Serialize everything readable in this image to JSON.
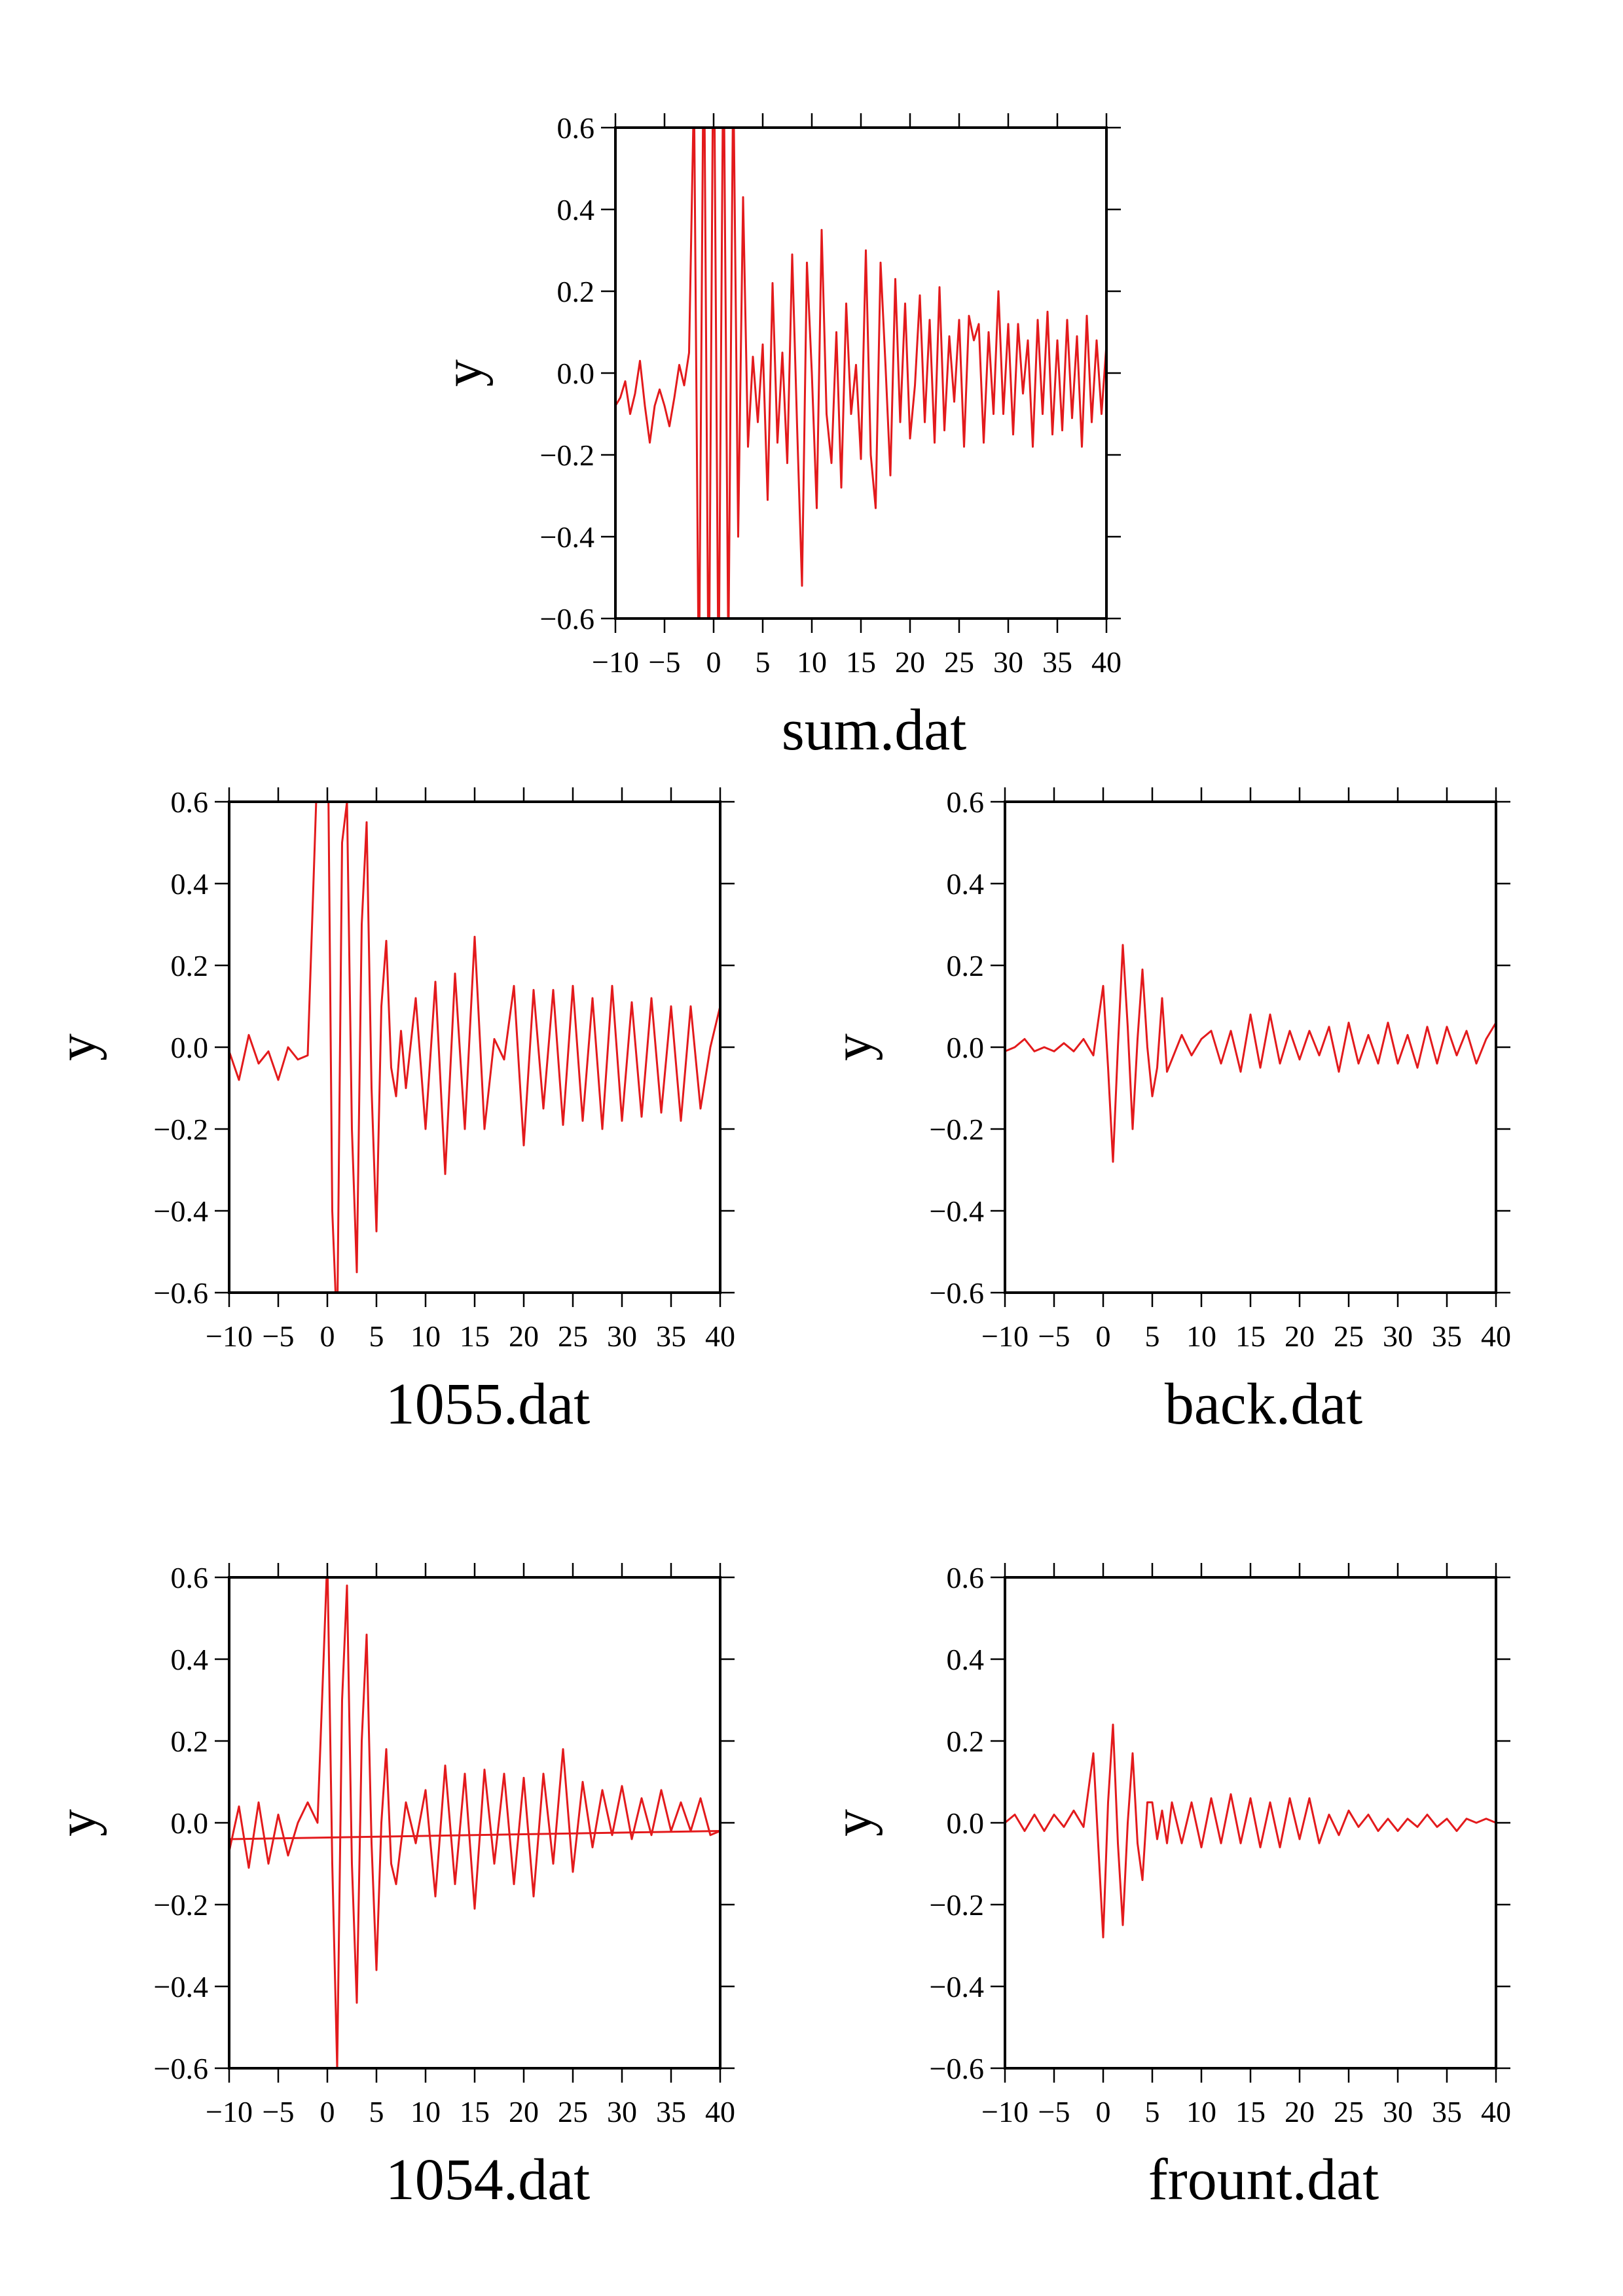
{
  "colors": {
    "series": "#e31a1c",
    "axis": "#000000",
    "background": "#ffffff"
  },
  "chart_data": [
    {
      "type": "line",
      "title": "sum.dat",
      "xlabel": "sum.dat",
      "ylabel": "y",
      "xlim": [
        -10,
        40
      ],
      "ylim": [
        -0.6,
        0.6
      ],
      "xticks": [
        -10,
        -5,
        0,
        5,
        10,
        15,
        20,
        25,
        30,
        35,
        40
      ],
      "xtick_labels": [
        "−10",
        "−5",
        "0",
        "5",
        "10",
        "15",
        "20",
        "25",
        "30",
        "35",
        "40"
      ],
      "yticks": [
        -0.6,
        -0.4,
        -0.2,
        0.0,
        0.2,
        0.4,
        0.6
      ],
      "ytick_labels": [
        "−0.6",
        "−0.4",
        "−0.2",
        "0.0",
        "0.2",
        "0.4",
        "0.6"
      ],
      "grid": false,
      "series": [
        {
          "x": [
            -10,
            -9.5,
            -9,
            -8.5,
            -8,
            -7.5,
            -7,
            -6.5,
            -6,
            -5.5,
            -5,
            -4.5,
            -4,
            -3.5,
            -3,
            -2.5,
            -2,
            -1.5,
            -1,
            -0.5,
            0,
            0.5,
            1,
            1.5,
            2,
            2.5,
            3,
            3.5,
            4,
            4.5,
            5,
            5.5,
            6,
            6.5,
            7,
            7.5,
            8,
            8.5,
            9,
            9.5,
            10,
            10.5,
            11,
            11.5,
            12,
            12.5,
            13,
            13.5,
            14,
            14.5,
            15,
            15.5,
            16,
            16.5,
            17,
            17.5,
            18,
            18.5,
            19,
            19.5,
            20,
            20.5,
            21,
            21.5,
            22,
            22.5,
            23,
            23.5,
            24,
            24.5,
            25,
            25.5,
            26,
            26.5,
            27,
            27.5,
            28,
            28.5,
            29,
            29.5,
            30,
            30.5,
            31,
            31.5,
            32,
            32.5,
            33,
            33.5,
            34,
            34.5,
            35,
            35.5,
            36,
            36.5,
            37,
            37.5,
            38,
            38.5,
            39,
            39.5,
            40
          ],
          "y": [
            -0.08,
            -0.06,
            -0.02,
            -0.1,
            -0.05,
            0.03,
            -0.08,
            -0.17,
            -0.08,
            -0.04,
            -0.08,
            -0.13,
            -0.06,
            0.02,
            -0.03,
            0.05,
            0.7,
            -0.8,
            0.9,
            -0.85,
            0.95,
            -0.8,
            0.85,
            -0.7,
            0.75,
            -0.4,
            0.43,
            -0.18,
            0.04,
            -0.12,
            0.07,
            -0.31,
            0.22,
            -0.17,
            0.05,
            -0.22,
            0.29,
            -0.13,
            -0.52,
            0.27,
            0.0,
            -0.33,
            0.35,
            -0.1,
            -0.22,
            0.1,
            -0.28,
            0.17,
            -0.1,
            0.02,
            -0.21,
            0.3,
            -0.2,
            -0.33,
            0.27,
            0.02,
            -0.25,
            0.23,
            -0.12,
            0.17,
            -0.16,
            -0.03,
            0.19,
            -0.12,
            0.13,
            -0.17,
            0.21,
            -0.14,
            0.09,
            -0.07,
            0.13,
            -0.18,
            0.14,
            0.08,
            0.12,
            -0.17,
            0.1,
            -0.1,
            0.2,
            -0.1,
            0.12,
            -0.15,
            0.12,
            -0.05,
            0.08,
            -0.18,
            0.13,
            -0.1,
            0.15,
            -0.15,
            0.08,
            -0.14,
            0.13,
            -0.11,
            0.09,
            -0.18,
            0.14,
            -0.12,
            0.08,
            -0.1,
            0.07
          ]
        }
      ]
    },
    {
      "type": "line",
      "title": "1055.dat",
      "xlabel": "1055.dat",
      "ylabel": "y",
      "xlim": [
        -10,
        40
      ],
      "ylim": [
        -0.6,
        0.6
      ],
      "xticks": [
        -10,
        -5,
        0,
        5,
        10,
        15,
        20,
        25,
        30,
        35,
        40
      ],
      "xtick_labels": [
        "−10",
        "−5",
        "0",
        "5",
        "10",
        "15",
        "20",
        "25",
        "30",
        "35",
        "40"
      ],
      "yticks": [
        -0.6,
        -0.4,
        -0.2,
        0.0,
        0.2,
        0.4,
        0.6
      ],
      "ytick_labels": [
        "−0.6",
        "−0.4",
        "−0.2",
        "0.0",
        "0.2",
        "0.4",
        "0.6"
      ],
      "grid": false,
      "series": [
        {
          "x": [
            -10,
            -9,
            -8,
            -7,
            -6,
            -5,
            -4,
            -3,
            -2,
            -1,
            0,
            0.5,
            1,
            1.5,
            2,
            2.5,
            3,
            3.5,
            4,
            4.5,
            5,
            5.5,
            6,
            6.5,
            7,
            7.5,
            8,
            9,
            10,
            11,
            12,
            13,
            14,
            15,
            16,
            17,
            18,
            19,
            20,
            21,
            22,
            23,
            24,
            25,
            26,
            27,
            28,
            29,
            30,
            31,
            32,
            33,
            34,
            35,
            36,
            37,
            38,
            39,
            40
          ],
          "y": [
            -0.01,
            -0.08,
            0.03,
            -0.04,
            -0.01,
            -0.08,
            0.0,
            -0.03,
            -0.02,
            0.7,
            0.9,
            -0.4,
            -0.7,
            0.5,
            0.6,
            -0.2,
            -0.55,
            0.3,
            0.55,
            -0.1,
            -0.45,
            0.1,
            0.26,
            -0.05,
            -0.12,
            0.04,
            -0.1,
            0.12,
            -0.2,
            0.16,
            -0.31,
            0.18,
            -0.2,
            0.27,
            -0.2,
            0.02,
            -0.03,
            0.15,
            -0.24,
            0.14,
            -0.15,
            0.14,
            -0.19,
            0.15,
            -0.18,
            0.12,
            -0.2,
            0.15,
            -0.18,
            0.11,
            -0.17,
            0.12,
            -0.16,
            0.1,
            -0.18,
            0.1,
            -0.15,
            0.0,
            0.1
          ]
        }
      ]
    },
    {
      "type": "line",
      "title": "back.dat",
      "xlabel": "back.dat",
      "ylabel": "y",
      "xlim": [
        -10,
        40
      ],
      "ylim": [
        -0.6,
        0.6
      ],
      "xticks": [
        -10,
        -5,
        0,
        5,
        10,
        15,
        20,
        25,
        30,
        35,
        40
      ],
      "xtick_labels": [
        "−10",
        "−5",
        "0",
        "5",
        "10",
        "15",
        "20",
        "25",
        "30",
        "35",
        "40"
      ],
      "yticks": [
        -0.6,
        -0.4,
        -0.2,
        0.0,
        0.2,
        0.4,
        0.6
      ],
      "ytick_labels": [
        "−0.6",
        "−0.4",
        "−0.2",
        "0.0",
        "0.2",
        "0.4",
        "0.6"
      ],
      "grid": false,
      "series": [
        {
          "x": [
            -10,
            -9,
            -8,
            -7,
            -6,
            -5,
            -4,
            -3,
            -2,
            -1,
            0,
            0.5,
            1,
            1.5,
            2,
            2.5,
            3,
            3.5,
            4,
            4.5,
            5,
            5.5,
            6,
            6.5,
            7,
            8,
            9,
            10,
            11,
            12,
            13,
            14,
            15,
            16,
            17,
            18,
            19,
            20,
            21,
            22,
            23,
            24,
            25,
            26,
            27,
            28,
            29,
            30,
            31,
            32,
            33,
            34,
            35,
            36,
            37,
            38,
            39,
            40
          ],
          "y": [
            -0.01,
            0.0,
            0.02,
            -0.01,
            0.0,
            -0.01,
            0.01,
            -0.01,
            0.02,
            -0.02,
            0.15,
            -0.05,
            -0.28,
            0.0,
            0.25,
            0.05,
            -0.2,
            0.02,
            0.19,
            0.0,
            -0.12,
            -0.05,
            0.12,
            -0.06,
            -0.03,
            0.03,
            -0.02,
            0.02,
            0.04,
            -0.04,
            0.04,
            -0.06,
            0.08,
            -0.05,
            0.08,
            -0.04,
            0.04,
            -0.03,
            0.04,
            -0.02,
            0.05,
            -0.06,
            0.06,
            -0.04,
            0.03,
            -0.04,
            0.06,
            -0.04,
            0.03,
            -0.05,
            0.05,
            -0.04,
            0.05,
            -0.02,
            0.04,
            -0.04,
            0.02,
            0.06
          ]
        }
      ]
    },
    {
      "type": "line",
      "title": "1054.dat",
      "xlabel": "1054.dat",
      "ylabel": "y",
      "xlim": [
        -10,
        40
      ],
      "ylim": [
        -0.6,
        0.6
      ],
      "xticks": [
        -10,
        -5,
        0,
        5,
        10,
        15,
        20,
        25,
        30,
        35,
        40
      ],
      "xtick_labels": [
        "−10",
        "−5",
        "0",
        "5",
        "10",
        "15",
        "20",
        "25",
        "30",
        "35",
        "40"
      ],
      "yticks": [
        -0.6,
        -0.4,
        -0.2,
        0.0,
        0.2,
        0.4,
        0.6
      ],
      "ytick_labels": [
        "−0.6",
        "−0.4",
        "−0.2",
        "0.0",
        "0.2",
        "0.4",
        "0.6"
      ],
      "grid": false,
      "series": [
        {
          "x": [
            -10,
            -9,
            -8,
            -7,
            -6,
            -5,
            -4,
            -3,
            -2,
            -1,
            0,
            0.5,
            1,
            1.5,
            2,
            2.5,
            3,
            3.5,
            4,
            4.5,
            5,
            5.5,
            6,
            6.5,
            7,
            8,
            9,
            10,
            11,
            12,
            13,
            14,
            15,
            16,
            17,
            18,
            19,
            20,
            21,
            22,
            23,
            24,
            25,
            26,
            27,
            28,
            29,
            30,
            31,
            32,
            33,
            34,
            35,
            36,
            37,
            38,
            39,
            40
          ],
          "y": [
            -0.07,
            0.04,
            -0.11,
            0.05,
            -0.1,
            0.02,
            -0.08,
            0.0,
            0.05,
            0.0,
            0.65,
            -0.1,
            -0.6,
            0.3,
            0.58,
            -0.1,
            -0.44,
            0.2,
            0.46,
            -0.05,
            -0.36,
            0.0,
            0.18,
            -0.1,
            -0.15,
            0.05,
            -0.05,
            0.08,
            -0.18,
            0.14,
            -0.15,
            0.12,
            -0.21,
            0.13,
            -0.1,
            0.12,
            -0.15,
            0.11,
            -0.18,
            0.12,
            -0.1,
            0.18,
            -0.12,
            0.1,
            -0.06,
            0.08,
            -0.03,
            0.09,
            -0.04,
            0.06,
            -0.03,
            0.08,
            -0.02,
            0.05,
            -0.02,
            0.06,
            -0.03,
            -0.02
          ]
        },
        {
          "x": [
            -10,
            40
          ],
          "y": [
            -0.04,
            -0.02
          ]
        }
      ]
    },
    {
      "type": "line",
      "title": "frount.dat",
      "xlabel": "frount.dat",
      "ylabel": "y",
      "xlim": [
        -10,
        40
      ],
      "ylim": [
        -0.6,
        0.6
      ],
      "xticks": [
        -10,
        -5,
        0,
        5,
        10,
        15,
        20,
        25,
        30,
        35,
        40
      ],
      "xtick_labels": [
        "−10",
        "−5",
        "0",
        "5",
        "10",
        "15",
        "20",
        "25",
        "30",
        "35",
        "40"
      ],
      "yticks": [
        -0.6,
        -0.4,
        -0.2,
        0.0,
        0.2,
        0.4,
        0.6
      ],
      "ytick_labels": [
        "−0.6",
        "−0.4",
        "−0.2",
        "0.0",
        "0.2",
        "0.4",
        "0.6"
      ],
      "grid": false,
      "series": [
        {
          "x": [
            -10,
            -9,
            -8,
            -7,
            -6,
            -5,
            -4,
            -3,
            -2,
            -1,
            0,
            0.5,
            1,
            1.5,
            2,
            2.5,
            3,
            3.5,
            4,
            4.5,
            5,
            5.5,
            6,
            6.5,
            7,
            8,
            9,
            10,
            11,
            12,
            13,
            14,
            15,
            16,
            17,
            18,
            19,
            20,
            21,
            22,
            23,
            24,
            25,
            26,
            27,
            28,
            29,
            30,
            31,
            32,
            33,
            34,
            35,
            36,
            37,
            38,
            39,
            40
          ],
          "y": [
            0.0,
            0.02,
            -0.02,
            0.02,
            -0.02,
            0.02,
            -0.01,
            0.03,
            -0.01,
            0.17,
            -0.28,
            0.05,
            0.24,
            -0.05,
            -0.25,
            0.0,
            0.17,
            -0.05,
            -0.14,
            0.05,
            0.05,
            -0.04,
            0.03,
            -0.05,
            0.05,
            -0.05,
            0.05,
            -0.06,
            0.06,
            -0.05,
            0.07,
            -0.05,
            0.06,
            -0.06,
            0.05,
            -0.06,
            0.06,
            -0.04,
            0.06,
            -0.05,
            0.02,
            -0.03,
            0.03,
            -0.01,
            0.02,
            -0.02,
            0.01,
            -0.02,
            0.01,
            -0.01,
            0.02,
            -0.01,
            0.01,
            -0.02,
            0.01,
            0.0,
            0.01,
            0.0
          ]
        }
      ]
    }
  ]
}
